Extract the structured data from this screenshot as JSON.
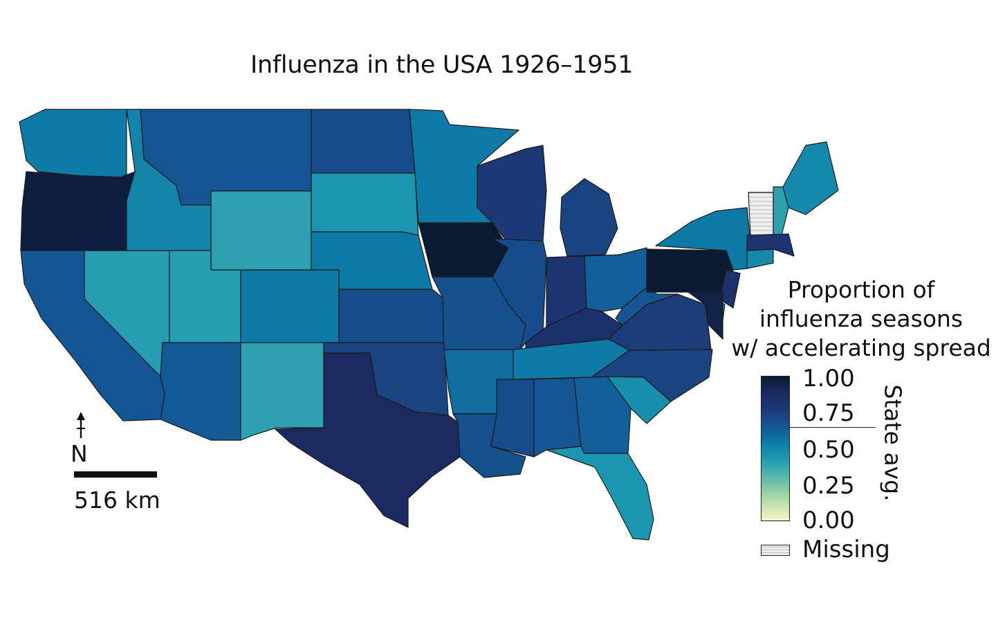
{
  "map": {
    "title": "Influenza in the USA 1926–1951",
    "regions": [
      {
        "name": "WA",
        "value": 0.55
      },
      {
        "name": "OR",
        "value": 0.97
      },
      {
        "name": "CA",
        "value": 0.68
      },
      {
        "name": "NV",
        "value": 0.42
      },
      {
        "name": "ID",
        "value": 0.52
      },
      {
        "name": "MT",
        "value": 0.68
      },
      {
        "name": "WY",
        "value": 0.4
      },
      {
        "name": "UT",
        "value": 0.42
      },
      {
        "name": "AZ",
        "value": 0.67
      },
      {
        "name": "CO",
        "value": 0.55
      },
      {
        "name": "NM",
        "value": 0.4
      },
      {
        "name": "ND",
        "value": 0.72
      },
      {
        "name": "SD",
        "value": 0.45
      },
      {
        "name": "NE",
        "value": 0.56
      },
      {
        "name": "KS",
        "value": 0.72
      },
      {
        "name": "OK",
        "value": 0.75
      },
      {
        "name": "TX",
        "value": 0.88
      },
      {
        "name": "MN",
        "value": 0.55
      },
      {
        "name": "IA",
        "value": 1.0
      },
      {
        "name": "MO",
        "value": 0.7
      },
      {
        "name": "AR",
        "value": 0.6
      },
      {
        "name": "LA",
        "value": 0.7
      },
      {
        "name": "WI",
        "value": 0.8
      },
      {
        "name": "IL",
        "value": 0.72
      },
      {
        "name": "MI",
        "value": 0.75
      },
      {
        "name": "IN",
        "value": 0.82
      },
      {
        "name": "OH",
        "value": 0.65
      },
      {
        "name": "KY",
        "value": 0.84
      },
      {
        "name": "TN",
        "value": 0.55
      },
      {
        "name": "MS",
        "value": 0.72
      },
      {
        "name": "AL",
        "value": 0.68
      },
      {
        "name": "GA",
        "value": 0.65
      },
      {
        "name": "FL",
        "value": 0.45
      },
      {
        "name": "SC",
        "value": 0.48
      },
      {
        "name": "NC",
        "value": 0.75
      },
      {
        "name": "VA",
        "value": 0.78
      },
      {
        "name": "WV",
        "value": 0.68
      },
      {
        "name": "PA",
        "value": 1.0
      },
      {
        "name": "NY",
        "value": 0.56
      },
      {
        "name": "VT",
        "value": null
      },
      {
        "name": "NH",
        "value": 0.4
      },
      {
        "name": "ME",
        "value": 0.5
      },
      {
        "name": "MA",
        "value": 0.82
      },
      {
        "name": "CT",
        "value": 0.5
      },
      {
        "name": "NJ",
        "value": 0.84
      },
      {
        "name": "DE",
        "value": 0.45
      },
      {
        "name": "MD",
        "value": 0.95
      }
    ]
  },
  "legend": {
    "title_lines": [
      "Proportion of",
      "influenza seasons",
      "w/ accelerating spread"
    ],
    "ticks": [
      "1.00",
      "0.75",
      "0.50",
      "0.25",
      "0.00"
    ],
    "avg_label": "State avg.",
    "missing_label": "Missing"
  },
  "scale": {
    "label": "516 km"
  },
  "north": {
    "label": "N"
  },
  "colors": {
    "border": "#1a1a1a",
    "scale_stops": [
      "#f6f6c8",
      "#bfe0ab",
      "#7ec6a9",
      "#45b1ae",
      "#1d97b0",
      "#0d7aa6",
      "#135a97",
      "#1c3b7a",
      "#1b2a60",
      "#0b1a33"
    ]
  }
}
